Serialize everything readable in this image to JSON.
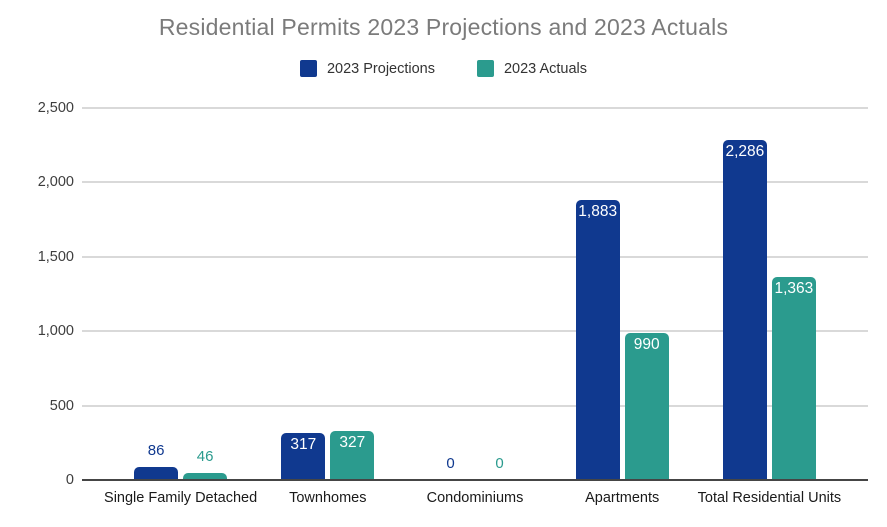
{
  "chart_data": {
    "type": "bar",
    "title": "Residential Permits 2023 Projections and 2023 Actuals",
    "categories": [
      "Single Family Detached",
      "Townhomes",
      "Condominiums",
      "Apartments",
      "Total Residential Units"
    ],
    "series": [
      {
        "name": "2023 Projections",
        "color": "#10398f",
        "values": [
          86,
          317,
          0,
          1883,
          2286
        ]
      },
      {
        "name": "2023 Actuals",
        "color": "#2b9b8e",
        "values": [
          46,
          327,
          0,
          990,
          1363
        ]
      }
    ],
    "data_labels": [
      "86",
      "317",
      "0",
      "1,883",
      "2,286",
      "46",
      "327",
      "0",
      "990",
      "1,363"
    ],
    "ylabel": "",
    "xlabel": "",
    "ylim": [
      0,
      2500
    ],
    "ytick_step": 500,
    "ytick_labels": [
      "0",
      "500",
      "1,000",
      "1,500",
      "2,000",
      "2,500"
    ],
    "grid": true,
    "legend_position": "top-center"
  },
  "colors": {
    "title_text": "#7b7b7b",
    "axis_tick_text": "#3d3d3d",
    "category_text": "#1a1a1a",
    "legend_text": "#333333",
    "gridline": "#d9d9d9",
    "axis_line": "#454545",
    "inside_label_text": "#ffffff",
    "background": "#ffffff"
  }
}
